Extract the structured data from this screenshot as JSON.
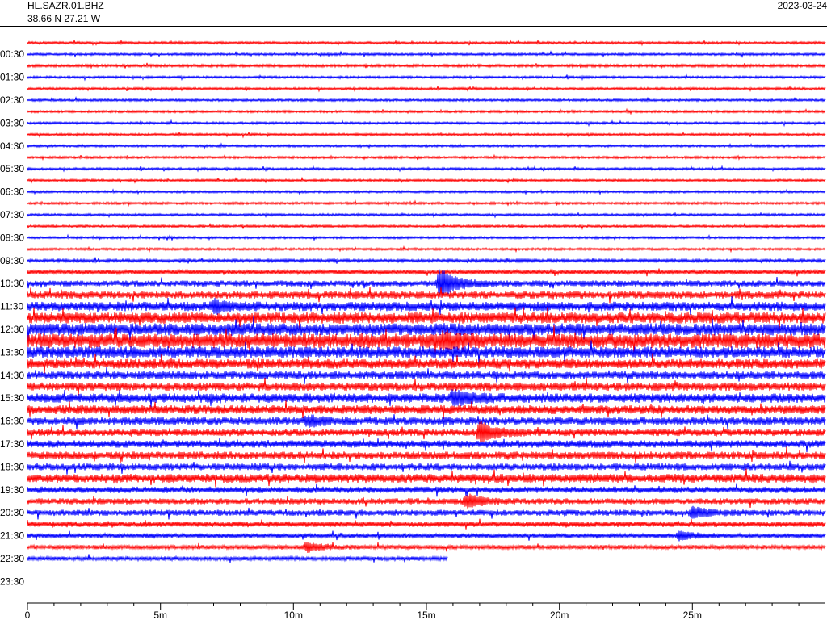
{
  "header": {
    "station": "HL.SAZR.01.BHZ",
    "coords": "38.66 N 27.21 W",
    "date": "2023-03-24"
  },
  "colors": {
    "trace_a": "#ff0000",
    "trace_b": "#0000ff",
    "axis": "#000000"
  },
  "chart_data": {
    "type": "line",
    "description_type": "helicorder",
    "row_labels": [
      "00:30",
      "01:30",
      "02:30",
      "03:30",
      "04:30",
      "05:30",
      "06:30",
      "07:30",
      "08:30",
      "09:30",
      "10:30",
      "11:30",
      "12:30",
      "13:30",
      "14:30",
      "15:30",
      "16:30",
      "17:30",
      "18:30",
      "19:30",
      "20:30",
      "21:30",
      "22:30",
      "23:30"
    ],
    "rows_per_hour": 2,
    "minutes_per_row": 30,
    "x_ticks": [
      "0",
      "5m",
      "10m",
      "15m",
      "20m",
      "25m"
    ],
    "x_tick_minutes": [
      0,
      5,
      10,
      15,
      20,
      25
    ],
    "xlim": [
      0,
      30
    ],
    "data_end_row": 45,
    "data_end_minute": 15.8,
    "noise_profile": [
      1.0,
      1.0,
      1.2,
      1.0,
      1.0,
      1.0,
      1.0,
      1.0,
      1.0,
      1.0,
      1.0,
      1.0,
      1.0,
      1.0,
      1.0,
      1.0,
      1.0,
      1.0,
      1.0,
      1.3,
      2.0,
      2.6,
      3.2,
      4.0,
      4.8,
      5.2,
      6.2,
      5.0,
      4.2,
      3.5,
      3.6,
      4.0,
      3.8,
      3.4,
      3.0,
      3.2,
      3.4,
      3.0,
      3.8,
      2.8,
      2.6,
      2.6,
      2.4,
      2.0,
      1.8,
      1.8
    ],
    "events": [
      {
        "row": 21,
        "minute": 15.5,
        "amplitude": 18
      },
      {
        "row": 23,
        "minute": 7.0,
        "amplitude": 6
      },
      {
        "row": 26,
        "minute": 15.6,
        "amplitude": 7
      },
      {
        "row": 31,
        "minute": 16.0,
        "amplitude": 9
      },
      {
        "row": 33,
        "minute": 10.5,
        "amplitude": 5
      },
      {
        "row": 34,
        "minute": 17.0,
        "amplitude": 12
      },
      {
        "row": 40,
        "minute": 16.5,
        "amplitude": 8
      },
      {
        "row": 41,
        "minute": 25.0,
        "amplitude": 6
      },
      {
        "row": 43,
        "minute": 24.5,
        "amplitude": 5
      },
      {
        "row": 44,
        "minute": 10.5,
        "amplitude": 6
      }
    ]
  }
}
